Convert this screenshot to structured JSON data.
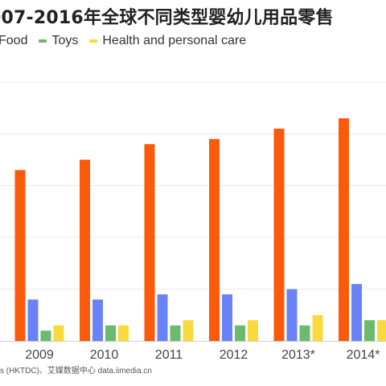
{
  "chart_data": {
    "type": "bar",
    "title": "007-2016年全球不同类型婴幼儿用品零售",
    "categories": [
      "2009",
      "2010",
      "2011",
      "2012",
      "2013*",
      "2014*"
    ],
    "series": [
      {
        "name": "Food",
        "color": "#fa5a0a",
        "values": [
          33,
          35,
          38,
          39,
          41,
          43
        ]
      },
      {
        "name": "Toys",
        "color": "#6bba6e",
        "values": [
          2,
          3,
          3,
          3,
          3,
          4
        ]
      },
      {
        "name": "Health and personal care",
        "color": "#f9da3c",
        "values": [
          3,
          3,
          4,
          4,
          5,
          4
        ]
      }
    ],
    "partial_series": [
      {
        "color": "#6a82f8",
        "values": [
          8,
          8,
          9,
          9,
          10,
          11
        ]
      }
    ],
    "ylim": [
      0,
      50
    ],
    "grid": true
  },
  "source_text": "s (HKTDC)、艾媒数据中心 data.iimedia.cn"
}
